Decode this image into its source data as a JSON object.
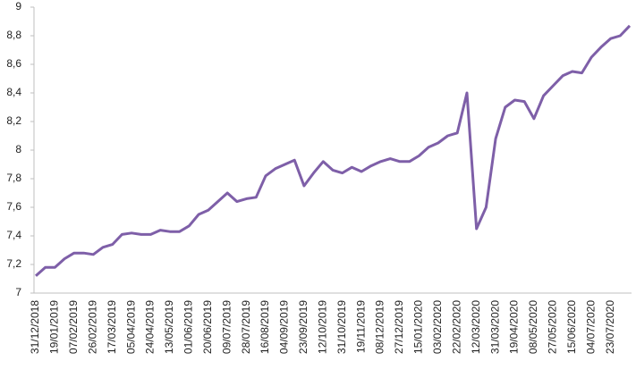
{
  "chart_data": {
    "type": "line",
    "categories": [
      "31/12/2018",
      null,
      "19/01/2019",
      null,
      "07/02/2019",
      null,
      "26/02/2019",
      null,
      "17/03/2019",
      null,
      "05/04/2019",
      null,
      "24/04/2019",
      null,
      "13/05/2019",
      null,
      "01/06/2019",
      null,
      "20/06/2019",
      null,
      "09/07/2019",
      null,
      "28/07/2019",
      null,
      "16/08/2019",
      null,
      "04/09/2019",
      null,
      "23/09/2019",
      null,
      "12/10/2019",
      null,
      "31/10/2019",
      null,
      "19/11/2019",
      null,
      "08/12/2019",
      null,
      "27/12/2019",
      null,
      "15/01/2020",
      null,
      "03/02/2020",
      null,
      "22/02/2020",
      null,
      "12/03/2020",
      null,
      "31/03/2020",
      null,
      "19/04/2020",
      null,
      "08/05/2020",
      null,
      "27/05/2020",
      null,
      "15/06/2020",
      null,
      "04/07/2020",
      null,
      "23/07/2020",
      null,
      null
    ],
    "values": [
      7.12,
      7.18,
      7.18,
      7.24,
      7.28,
      7.28,
      7.27,
      7.32,
      7.34,
      7.41,
      7.42,
      7.41,
      7.41,
      7.44,
      7.43,
      7.43,
      7.47,
      7.55,
      7.58,
      7.64,
      7.7,
      7.64,
      7.66,
      7.67,
      7.82,
      7.87,
      7.9,
      7.93,
      7.75,
      7.84,
      7.92,
      7.86,
      7.84,
      7.88,
      7.85,
      7.89,
      7.92,
      7.94,
      7.92,
      7.92,
      7.96,
      8.02,
      8.05,
      8.1,
      8.12,
      8.4,
      7.45,
      7.6,
      8.08,
      8.3,
      8.35,
      8.34,
      8.22,
      8.38,
      8.45,
      8.52,
      8.55,
      8.54,
      8.65,
      8.72,
      8.78,
      8.8,
      8.87
    ],
    "color": "#7e5fa8",
    "ylim": [
      7,
      9
    ],
    "yticks": [
      7,
      {
        "value": 7.2,
        "label": "7,2"
      },
      {
        "value": 7.4,
        "label": "7,4"
      },
      {
        "value": 7.6,
        "label": "7,6"
      },
      {
        "value": 7.8,
        "label": "7,8"
      },
      8,
      {
        "value": 8.2,
        "label": "8,2"
      },
      {
        "value": 8.4,
        "label": "8,4"
      },
      {
        "value": 8.6,
        "label": "8,6"
      },
      {
        "value": 8.8,
        "label": "8,8"
      },
      9
    ],
    "grid": false
  }
}
